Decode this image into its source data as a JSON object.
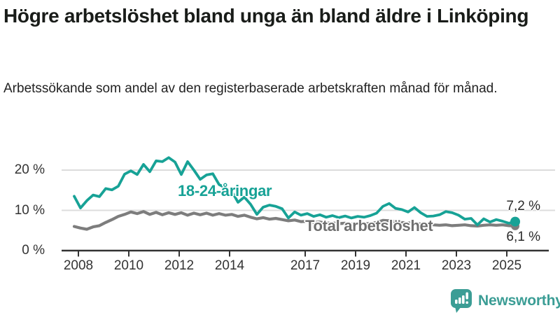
{
  "header": {
    "title": "Högre arbetslöshet bland unga än bland äldre i Linköping",
    "subtitle": "Arbetssökande som andel av den registerbaserade arbetskraften månad för månad."
  },
  "chart_data": {
    "type": "line",
    "title": "Högre arbetslöshet bland unga än bland äldre i Linköping",
    "subtitle": "Arbetssökande som andel av den registerbaserade arbetskraften månad för månad.",
    "unit": "%",
    "grid": true,
    "x_start": 2008.0,
    "x_step": 0.25,
    "ylim": [
      0,
      24
    ],
    "y_ticks": [
      0,
      10,
      20
    ],
    "y_tick_labels": [
      "0 %",
      "10 %",
      "20 %"
    ],
    "x_ticks": [
      2008,
      2010,
      2012,
      2014,
      2017,
      2019,
      2021,
      2023,
      2025
    ],
    "x_tick_labels": [
      "2008",
      "2010",
      "2012",
      "2014",
      "2017",
      "2019",
      "2021",
      "2023",
      "2025"
    ],
    "series": [
      {
        "name": "Total arbetslöshet",
        "color": "#7d7d7d",
        "end_value": 6.1,
        "end_label": "6,1 %",
        "values": [
          6.0,
          5.6,
          5.3,
          5.9,
          6.2,
          7.0,
          7.7,
          8.5,
          9.0,
          9.6,
          9.2,
          9.7,
          9.0,
          9.5,
          8.9,
          9.4,
          9.0,
          9.4,
          8.8,
          9.3,
          8.9,
          9.3,
          8.8,
          9.2,
          8.8,
          9.0,
          8.5,
          8.8,
          8.3,
          7.9,
          8.2,
          7.8,
          8.0,
          7.7,
          7.4,
          7.6,
          7.2,
          7.3,
          7.0,
          7.1,
          6.8,
          6.9,
          6.7,
          6.8,
          6.6,
          6.7,
          6.6,
          6.8,
          7.0,
          7.5,
          7.4,
          7.2,
          7.0,
          6.9,
          6.8,
          6.6,
          6.4,
          6.4,
          6.3,
          6.4,
          6.2,
          6.3,
          6.4,
          6.2,
          6.1,
          6.3,
          6.4,
          6.3,
          6.4,
          6.2,
          6.1
        ]
      },
      {
        "name": "18-24-åringar",
        "color": "#17a296",
        "end_value": 7.2,
        "end_label": "7,2 %",
        "values": [
          13.5,
          10.6,
          12.4,
          13.8,
          13.4,
          15.4,
          15.1,
          16.0,
          19.0,
          19.8,
          18.9,
          21.4,
          19.6,
          22.3,
          22.1,
          23.1,
          22.0,
          18.9,
          22.1,
          20.0,
          17.7,
          18.8,
          19.1,
          16.4,
          15.6,
          14.8,
          12.0,
          13.3,
          11.5,
          9.0,
          10.8,
          11.3,
          11.0,
          10.4,
          8.1,
          9.6,
          8.8,
          9.2,
          8.5,
          8.9,
          8.3,
          8.7,
          8.2,
          8.6,
          8.1,
          8.5,
          8.3,
          8.7,
          9.3,
          11.0,
          11.7,
          10.5,
          10.2,
          9.6,
          10.7,
          9.4,
          8.5,
          8.6,
          8.9,
          9.7,
          9.4,
          8.8,
          7.8,
          8.0,
          6.4,
          7.9,
          7.1,
          7.7,
          7.3,
          6.8,
          7.2
        ]
      }
    ],
    "annotations": {
      "youth_label": "18-24-åringar",
      "total_label": "Total arbetslöshet",
      "end_label_youth": "7,2 %",
      "end_label_total": "6,1 %"
    },
    "legend_position": "inline-labels"
  },
  "footer": {
    "brand": "Newsworthy"
  },
  "colors": {
    "teal": "#17a296",
    "gray_line": "#7d7d7d",
    "label_gray": "#6f6f6f",
    "axis": "#333333",
    "grid": "#dcdcdc",
    "title": "#191c19",
    "brand": "#3b9d95"
  }
}
